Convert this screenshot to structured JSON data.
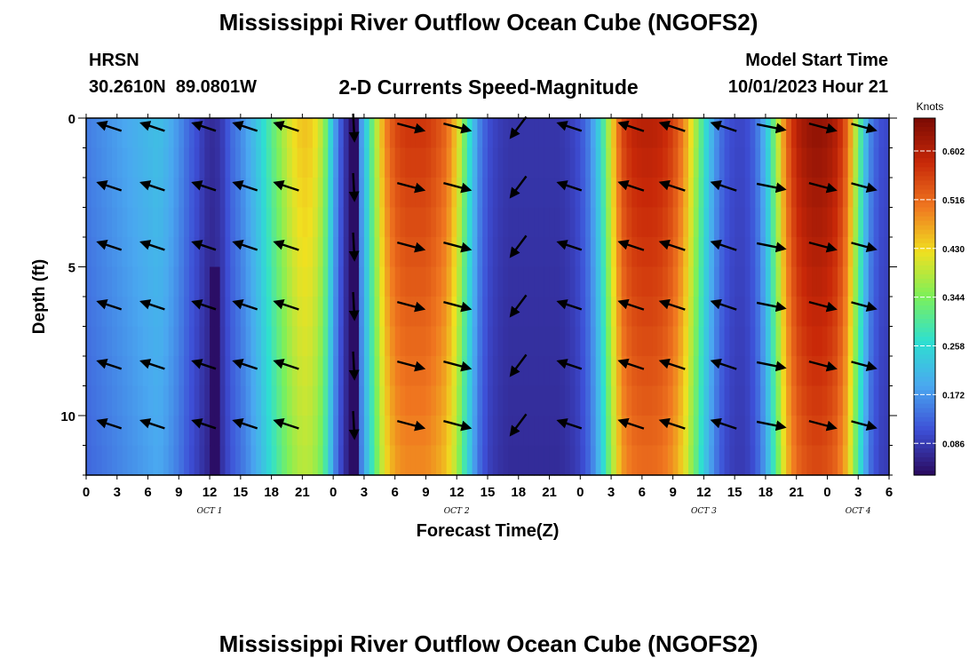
{
  "header": {
    "title": "Mississippi River Outflow Ocean Cube (NGOFS2)",
    "station": "HRSN",
    "coords": "30.2610N  89.0801W",
    "subtitle": "2-D Currents Speed-Magnitude",
    "model_start_label": "Model Start Time",
    "model_start_value": "10/01/2023 Hour 21"
  },
  "footer": {
    "title": "Mississippi River Outflow Ocean Cube (NGOFS2)"
  },
  "chart_data": {
    "type": "heatmap",
    "xlabel": "Forecast Time(Z)",
    "ylabel": "Depth (ft)",
    "x_tick_labels": [
      "0",
      "3",
      "6",
      "9",
      "12",
      "15",
      "18",
      "21",
      "0",
      "3",
      "6",
      "9",
      "12",
      "15",
      "18",
      "21",
      "0",
      "3",
      "6",
      "9",
      "12",
      "15",
      "18",
      "21",
      "0",
      "3",
      "6"
    ],
    "day_labels": [
      {
        "label": "OCT 1",
        "hour": 12
      },
      {
        "label": "OCT 2",
        "hour": 36
      },
      {
        "label": "OCT 3",
        "hour": 60
      },
      {
        "label": "OCT 4",
        "hour": 75
      }
    ],
    "xlim_hours": [
      0,
      78
    ],
    "y_ticks": [
      0,
      5,
      10
    ],
    "ylim_ft": [
      0,
      12
    ],
    "y_inverted": true,
    "colorbar": {
      "title": "Knots",
      "ticks": [
        0.086,
        0.172,
        0.258,
        0.344,
        0.43,
        0.516,
        0.602
      ],
      "range": [
        0.03,
        0.66
      ],
      "colors": [
        "#2a0a5e",
        "#3d4fd6",
        "#4aa8f0",
        "#2ee0d0",
        "#7cf05a",
        "#f0e020",
        "#f07820",
        "#c82808",
        "#7a0a04"
      ]
    },
    "speed_profile_hours": [
      0,
      1,
      2,
      3,
      4,
      5,
      6,
      7,
      8,
      9,
      10,
      11,
      11.5,
      12,
      12.5,
      13,
      13.5,
      14,
      15,
      16,
      17,
      18,
      19,
      20,
      21,
      22,
      23,
      23.5,
      24,
      25,
      25.5,
      26,
      27,
      28,
      29,
      30,
      31,
      32,
      33,
      34,
      35,
      36,
      37,
      38,
      39,
      40,
      41,
      42,
      43,
      44,
      45,
      46,
      47,
      48,
      49,
      50,
      51,
      52,
      53,
      54,
      55,
      56,
      57,
      58,
      59,
      60,
      61,
      62,
      63,
      64,
      65,
      66,
      67,
      68,
      69,
      70,
      71,
      72,
      73,
      74,
      75,
      76,
      77,
      78
    ],
    "speed_profile_knots": [
      0.15,
      0.16,
      0.17,
      0.18,
      0.19,
      0.2,
      0.21,
      0.22,
      0.2,
      0.17,
      0.13,
      0.1,
      0.08,
      0.07,
      0.07,
      0.08,
      0.1,
      0.13,
      0.16,
      0.2,
      0.25,
      0.31,
      0.37,
      0.42,
      0.45,
      0.44,
      0.38,
      0.3,
      0.2,
      0.09,
      0.06,
      0.09,
      0.21,
      0.36,
      0.49,
      0.55,
      0.57,
      0.57,
      0.57,
      0.55,
      0.52,
      0.44,
      0.3,
      0.17,
      0.11,
      0.09,
      0.08,
      0.08,
      0.08,
      0.08,
      0.08,
      0.08,
      0.09,
      0.11,
      0.16,
      0.26,
      0.42,
      0.55,
      0.59,
      0.6,
      0.6,
      0.59,
      0.56,
      0.5,
      0.4,
      0.28,
      0.18,
      0.12,
      0.1,
      0.1,
      0.13,
      0.21,
      0.36,
      0.52,
      0.6,
      0.63,
      0.64,
      0.63,
      0.6,
      0.52,
      0.34,
      0.17,
      0.11,
      0.1,
      0.1
    ],
    "dark_streaks": [
      {
        "hour": 12.5,
        "from_ft": 5.5,
        "to_ft": 12,
        "knots": 0.035
      },
      {
        "hour": 26.0,
        "from_ft": 0,
        "to_ft": 12,
        "knots": 0.035
      }
    ],
    "vector_rows_ft": [
      0.3,
      2.3,
      4.3,
      6.3,
      8.3,
      10.3
    ],
    "vectors": [
      {
        "hour": 2.3,
        "dir": [
          -0.9,
          -0.3
        ],
        "mag": 0.5
      },
      {
        "hour": 6.5,
        "dir": [
          -0.9,
          -0.3
        ],
        "mag": 0.5
      },
      {
        "hour": 11.5,
        "dir": [
          -0.9,
          -0.3
        ],
        "mag": 0.45
      },
      {
        "hour": 15.5,
        "dir": [
          -0.9,
          -0.3
        ],
        "mag": 0.5
      },
      {
        "hour": 19.5,
        "dir": [
          -0.9,
          -0.3
        ],
        "mag": 0.55
      },
      {
        "hour": 26.0,
        "dir": [
          0.05,
          1.0
        ],
        "mag": 0.6
      },
      {
        "hour": 31.5,
        "dir": [
          0.93,
          0.25
        ],
        "mag": 0.7
      },
      {
        "hour": 36.0,
        "dir": [
          0.93,
          0.25
        ],
        "mag": 0.7
      },
      {
        "hour": 42.0,
        "dir": [
          -0.6,
          0.8
        ],
        "mag": 0.5
      },
      {
        "hour": 47.0,
        "dir": [
          -0.9,
          -0.3
        ],
        "mag": 0.5
      },
      {
        "hour": 53.0,
        "dir": [
          -0.9,
          -0.3
        ],
        "mag": 0.6
      },
      {
        "hour": 57.0,
        "dir": [
          -0.9,
          -0.3
        ],
        "mag": 0.6
      },
      {
        "hour": 62.0,
        "dir": [
          -0.9,
          -0.3
        ],
        "mag": 0.6
      },
      {
        "hour": 66.5,
        "dir": [
          0.98,
          0.2
        ],
        "mag": 0.7
      },
      {
        "hour": 71.5,
        "dir": [
          0.93,
          0.25
        ],
        "mag": 0.7
      },
      {
        "hour": 75.5,
        "dir": [
          0.93,
          0.25
        ],
        "mag": 0.5
      }
    ]
  }
}
